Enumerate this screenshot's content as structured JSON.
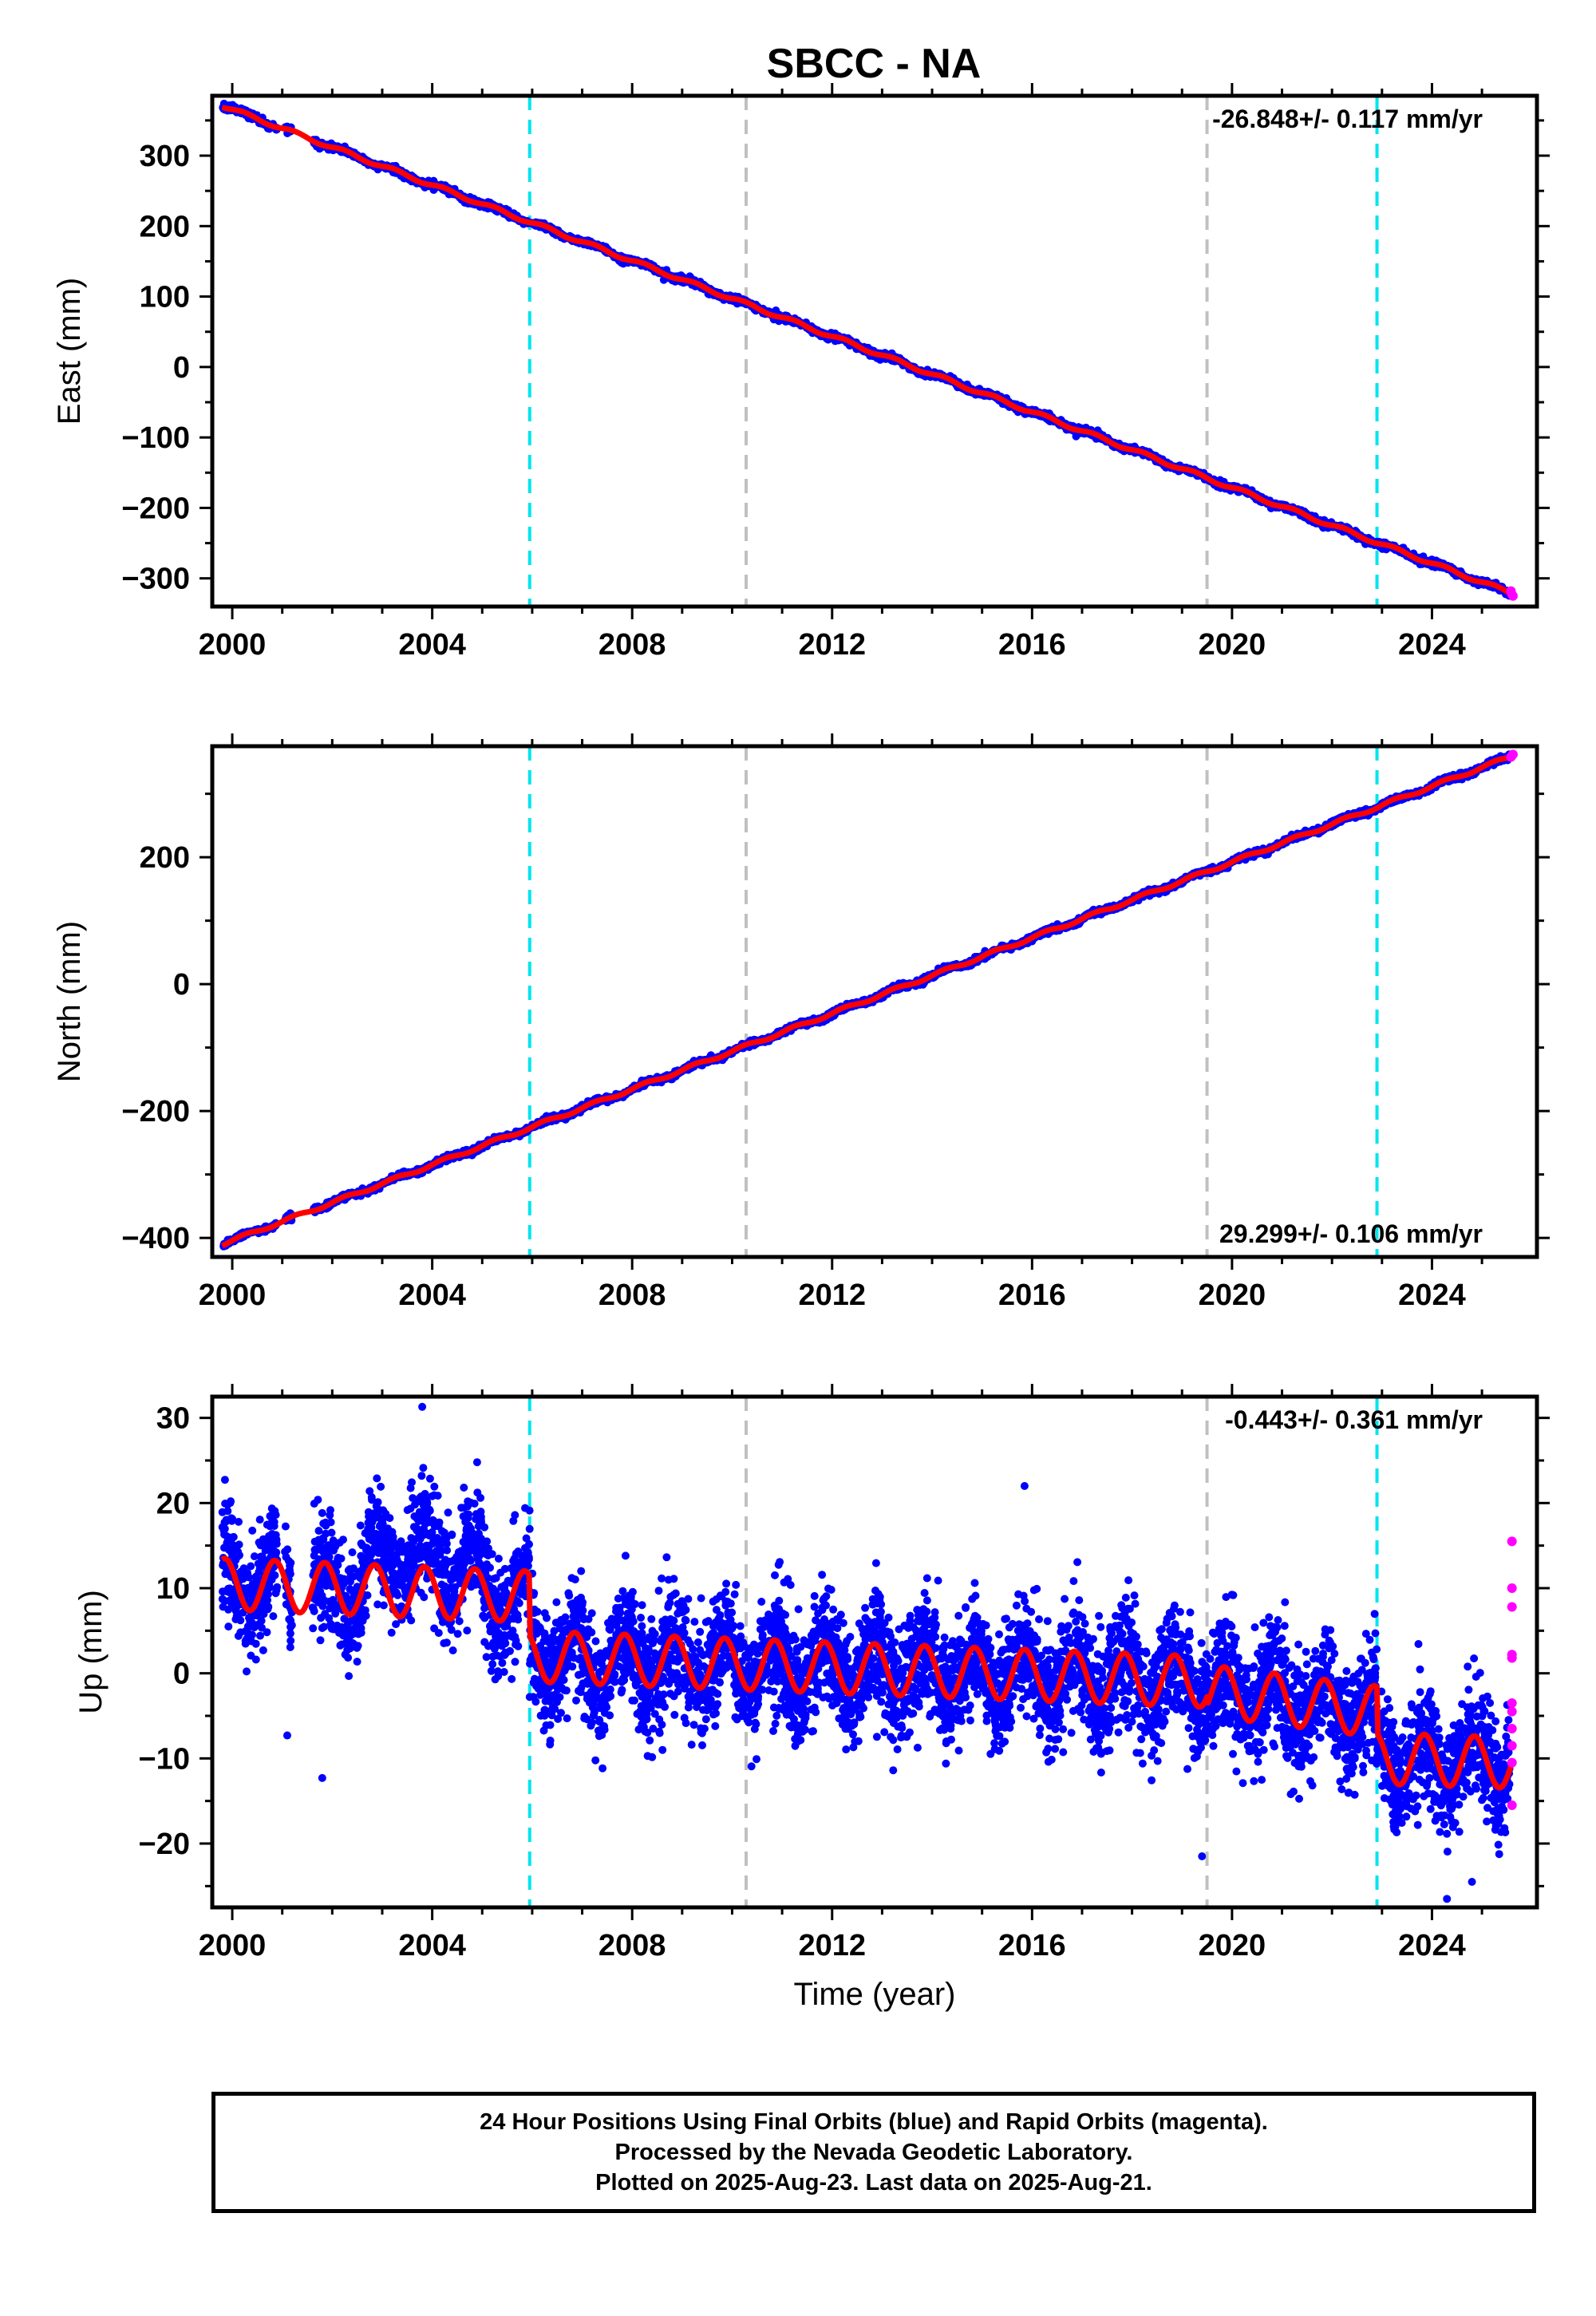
{
  "title": "SBCC - NA",
  "colors": {
    "final_orbits": "#0000ff",
    "rapid_orbits": "#ff00ff",
    "model": "#ff0000",
    "offset_equipment": "#00e5ee",
    "offset_other": "#c0c0c0",
    "axes": "#000000"
  },
  "chart_data": [
    {
      "type": "scatter",
      "component": "East",
      "ylabel": "East (mm)",
      "xlabel": "",
      "xlim": [
        1999.6,
        2026.1
      ],
      "ylim": [
        -340,
        385
      ],
      "xticks": [
        2000,
        2004,
        2008,
        2012,
        2016,
        2020,
        2024
      ],
      "yticks": [
        -300,
        -200,
        -100,
        0,
        100,
        200,
        300
      ],
      "yticks_minor_step": 50,
      "rate_label": "-26.848+/- 0.117 mm/yr",
      "rate_position": "top-right",
      "rate_mm_per_yr": -26.848,
      "series": [
        {
          "role": "final_orbits",
          "x_range": [
            1999.8,
            2025.55
          ],
          "model_start_value": 371,
          "model_end_value": -320
        },
        {
          "role": "rapid_orbits",
          "x": [
            2025.58,
            2025.6,
            2025.62
          ],
          "values": [
            -318,
            -323,
            -325
          ]
        },
        {
          "role": "model_fit",
          "x_range": [
            1999.8,
            2025.62
          ],
          "start_value": 371,
          "end_value": -322
        }
      ],
      "offsets": [
        {
          "x": 2005.95,
          "kind": "equipment"
        },
        {
          "x": 2010.28,
          "kind": "other"
        },
        {
          "x": 2019.5,
          "kind": "other"
        },
        {
          "x": 2022.9,
          "kind": "equipment"
        }
      ]
    },
    {
      "type": "scatter",
      "component": "North",
      "ylabel": "North (mm)",
      "xlabel": "",
      "xlim": [
        1999.6,
        2026.1
      ],
      "ylim": [
        -430,
        375
      ],
      "xticks": [
        2000,
        2004,
        2008,
        2012,
        2016,
        2020,
        2024
      ],
      "yticks": [
        -400,
        -200,
        0,
        200
      ],
      "yticks_minor_step": 100,
      "rate_label": "29.299+/- 0.106 mm/yr",
      "rate_position": "bottom-right",
      "rate_mm_per_yr": 29.299,
      "series": [
        {
          "role": "final_orbits",
          "x_range": [
            1999.8,
            2025.55
          ],
          "model_start_value": -410,
          "model_end_value": 358
        },
        {
          "role": "rapid_orbits",
          "x": [
            2025.58,
            2025.6,
            2025.62
          ],
          "values": [
            358,
            360,
            362
          ]
        },
        {
          "role": "model_fit",
          "x_range": [
            1999.8,
            2025.62
          ],
          "start_value": -410,
          "end_value": 360
        }
      ],
      "offsets": [
        {
          "x": 2005.95,
          "kind": "equipment"
        },
        {
          "x": 2010.28,
          "kind": "other"
        },
        {
          "x": 2019.5,
          "kind": "other"
        },
        {
          "x": 2022.9,
          "kind": "equipment"
        }
      ]
    },
    {
      "type": "scatter",
      "component": "Up",
      "ylabel": "Up (mm)",
      "xlabel": "Time (year)",
      "xlim": [
        1999.6,
        2026.1
      ],
      "ylim": [
        -27.5,
        32.5
      ],
      "xticks": [
        2000,
        2004,
        2008,
        2012,
        2016,
        2020,
        2024
      ],
      "yticks": [
        -20,
        -10,
        0,
        10,
        20,
        30
      ],
      "yticks_minor_step": 5,
      "rate_label": "-0.443+/- 0.361 mm/yr",
      "rate_position": "top-right",
      "rate_mm_per_yr": -0.443,
      "annual_amplitude_mm": 3,
      "model_segments": [
        {
          "x_range": [
            1999.8,
            2005.95
          ],
          "level_start": 10.5,
          "level_end": 9
        },
        {
          "x_range": [
            2005.95,
            2019.5
          ],
          "level_start": 2,
          "level_end": -1
        },
        {
          "x_range": [
            2019.5,
            2022.9
          ],
          "level_start": -2,
          "level_end": -4.5
        },
        {
          "x_range": [
            2022.9,
            2025.62
          ],
          "level_start": -10,
          "level_end": -10.5
        }
      ],
      "series": [
        {
          "role": "final_orbits",
          "x_range": [
            1999.8,
            2025.55
          ],
          "spread_mm": 6
        },
        {
          "role": "rapid_orbits",
          "x": [
            2025.6,
            2025.6,
            2025.6,
            2025.6,
            2025.6,
            2025.6,
            2025.6,
            2025.6,
            2025.6,
            2025.6,
            2025.6
          ],
          "values": [
            15.5,
            10,
            7.8,
            2.2,
            1.8,
            -3.5,
            -4.5,
            -6.5,
            -8.5,
            -10.5,
            -15.5
          ]
        },
        {
          "role": "model_fit",
          "x_range": [
            1999.8,
            2025.62
          ]
        }
      ],
      "outliers": {
        "x": [
          2003.8,
          2015.85,
          2001.8,
          2001.1,
          2019.4,
          2024.3,
          2024.8
        ],
        "values": [
          31.3,
          22,
          -12.3,
          -7.3,
          -21.5,
          -26.5,
          -24.5
        ]
      },
      "offsets": [
        {
          "x": 2005.95,
          "kind": "equipment"
        },
        {
          "x": 2010.28,
          "kind": "other"
        },
        {
          "x": 2019.5,
          "kind": "other"
        },
        {
          "x": 2022.9,
          "kind": "equipment"
        }
      ]
    }
  ],
  "footer": {
    "line1": "24 Hour Positions Using Final Orbits (blue) and Rapid Orbits (magenta).",
    "line2": "Processed by the Nevada Geodetic Laboratory.",
    "line3": "Plotted on 2025-Aug-23. Last data on 2025-Aug-21."
  }
}
